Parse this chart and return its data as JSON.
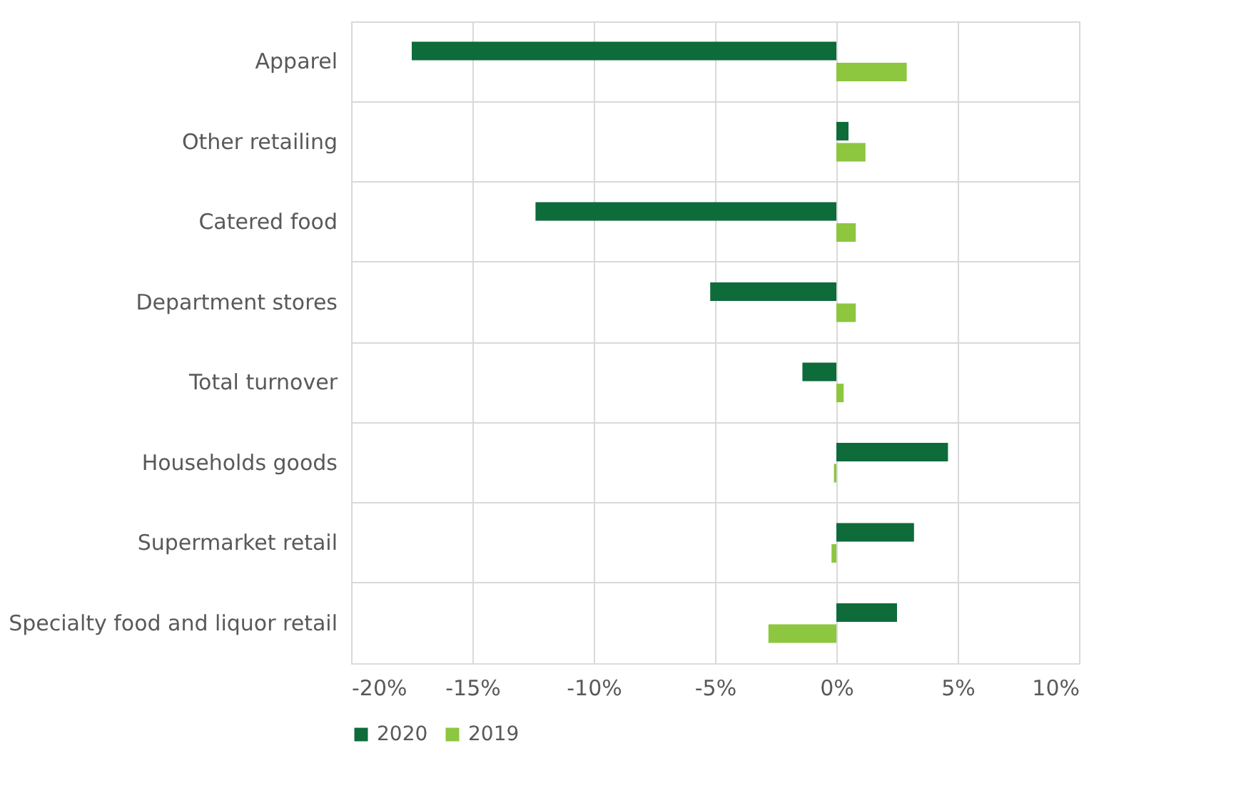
{
  "chart_data": {
    "type": "bar",
    "orientation": "horizontal",
    "categories": [
      "Apparel",
      "Other retailing",
      "Catered food ",
      "Department stores",
      "Total turnover",
      "Households goods",
      "Supermarket retail",
      "Specialty food and liquor retail"
    ],
    "series": [
      {
        "name": "2020",
        "color": "#0e6b3a",
        "values": [
          -17.5,
          0.5,
          -12.4,
          -5.2,
          -1.4,
          4.6,
          3.2,
          2.5
        ]
      },
      {
        "name": "2019",
        "color": "#8dc63f",
        "values": [
          2.9,
          1.2,
          0.8,
          0.8,
          0.3,
          -0.1,
          -0.2,
          -2.8
        ]
      }
    ],
    "xlim": [
      -20,
      10
    ],
    "xticks": [
      {
        "value": -20,
        "label": "-20%"
      },
      {
        "value": -15,
        "label": "-15%"
      },
      {
        "value": -10,
        "label": "-10%"
      },
      {
        "value": -5,
        "label": "-5%"
      },
      {
        "value": 0,
        "label": "0%"
      },
      {
        "value": 5,
        "label": "5%"
      },
      {
        "value": 10,
        "label": "10%"
      }
    ],
    "grid": true,
    "legend": "bottom"
  }
}
